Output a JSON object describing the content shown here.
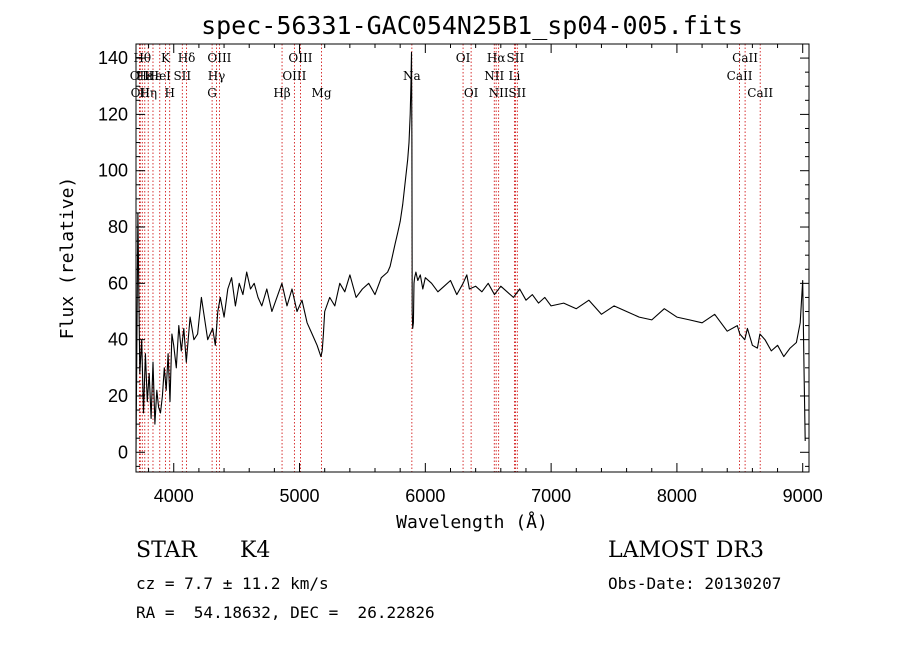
{
  "chart_data": {
    "type": "line",
    "title": "spec-56331-GAC054N25B1_sp04-005.fits",
    "xlabel": "Wavelength (Å)",
    "ylabel": "Flux (relative)",
    "xlim": [
      3700,
      9050
    ],
    "ylim": [
      -7,
      145
    ],
    "x_ticks": [
      4000,
      5000,
      6000,
      7000,
      8000,
      9000
    ],
    "y_ticks": [
      0,
      20,
      40,
      60,
      80,
      100,
      120,
      140
    ],
    "line_color": "#000000",
    "marker_color": "#cc0000",
    "series": [
      {
        "name": "spectrum",
        "x": [
          3700,
          3715,
          3730,
          3745,
          3760,
          3775,
          3790,
          3805,
          3820,
          3835,
          3850,
          3865,
          3880,
          3895,
          3910,
          3925,
          3940,
          3955,
          3970,
          3985,
          4000,
          4020,
          4040,
          4060,
          4080,
          4100,
          4130,
          4160,
          4190,
          4220,
          4250,
          4270,
          4290,
          4310,
          4330,
          4350,
          4370,
          4400,
          4430,
          4460,
          4490,
          4520,
          4550,
          4580,
          4610,
          4640,
          4670,
          4700,
          4740,
          4780,
          4820,
          4860,
          4900,
          4940,
          4980,
          5020,
          5060,
          5100,
          5140,
          5170,
          5180,
          5190,
          5200,
          5240,
          5280,
          5320,
          5360,
          5400,
          5450,
          5500,
          5550,
          5600,
          5650,
          5700,
          5720,
          5740,
          5760,
          5780,
          5800,
          5820,
          5840,
          5860,
          5870,
          5880,
          5885,
          5890,
          5893,
          5896,
          5900,
          5905,
          5910,
          5915,
          5925,
          5940,
          5960,
          5980,
          6000,
          6050,
          6100,
          6150,
          6200,
          6250,
          6300,
          6330,
          6350,
          6400,
          6450,
          6500,
          6550,
          6600,
          6650,
          6700,
          6750,
          6800,
          6850,
          6900,
          6950,
          7000,
          7100,
          7200,
          7300,
          7400,
          7500,
          7600,
          7700,
          7800,
          7900,
          8000,
          8100,
          8200,
          8300,
          8400,
          8480,
          8500,
          8540,
          8560,
          8600,
          8640,
          8660,
          8700,
          8750,
          8800,
          8850,
          8900,
          8950,
          8980,
          9000,
          9010,
          9020
        ],
        "values": [
          0,
          85,
          28,
          40,
          14,
          35,
          18,
          28,
          12,
          32,
          10,
          22,
          16,
          14,
          20,
          30,
          22,
          35,
          18,
          42,
          38,
          30,
          45,
          36,
          44,
          32,
          48,
          40,
          42,
          55,
          46,
          40,
          42,
          44,
          38,
          50,
          55,
          48,
          58,
          62,
          52,
          60,
          56,
          64,
          58,
          60,
          55,
          52,
          58,
          50,
          55,
          60,
          52,
          58,
          50,
          54,
          46,
          42,
          38,
          34,
          36,
          42,
          50,
          55,
          52,
          60,
          57,
          63,
          55,
          58,
          60,
          56,
          62,
          64,
          66,
          70,
          74,
          78,
          82,
          88,
          96,
          104,
          110,
          120,
          130,
          142,
          110,
          50,
          44,
          46,
          60,
          62,
          64,
          61,
          63,
          58,
          62,
          60,
          57,
          59,
          61,
          56,
          60,
          63,
          58,
          59,
          57,
          60,
          56,
          59,
          57,
          55,
          58,
          54,
          56,
          53,
          55,
          52,
          53,
          51,
          54,
          49,
          52,
          50,
          48,
          47,
          51,
          48,
          47,
          46,
          49,
          43,
          45,
          42,
          40,
          44,
          38,
          37,
          42,
          40,
          36,
          38,
          34,
          37,
          39,
          46,
          61,
          30,
          4
        ]
      }
    ],
    "lines": [
      {
        "wave": 3727,
        "label": "OII",
        "row": 1
      },
      {
        "wave": 3734,
        "label": "OII",
        "row": 2
      },
      {
        "wave": 3750,
        "label": "Hθ",
        "row": 0
      },
      {
        "wave": 3770,
        "label": "Hε",
        "row": 1
      },
      {
        "wave": 3797,
        "label": "Hη",
        "row": 2
      },
      {
        "wave": 3835,
        "label": "Hε",
        "row": 1
      },
      {
        "wave": 3889,
        "label": "HeI",
        "row": 1
      },
      {
        "wave": 3934,
        "label": "K",
        "row": 0
      },
      {
        "wave": 3968,
        "label": "H",
        "row": 2
      },
      {
        "wave": 4068,
        "label": "SII",
        "row": 1
      },
      {
        "wave": 4102,
        "label": "Hδ",
        "row": 0
      },
      {
        "wave": 4305,
        "label": "G",
        "row": 2
      },
      {
        "wave": 4340,
        "label": "Hγ",
        "row": 1
      },
      {
        "wave": 4363,
        "label": "OIII",
        "row": 0
      },
      {
        "wave": 4861,
        "label": "Hβ",
        "row": 2
      },
      {
        "wave": 4959,
        "label": "OIII",
        "row": 1
      },
      {
        "wave": 5007,
        "label": "OIII",
        "row": 0
      },
      {
        "wave": 5175,
        "label": "Mg",
        "row": 2
      },
      {
        "wave": 5893,
        "label": "Na",
        "row": 1
      },
      {
        "wave": 6300,
        "label": "OI",
        "row": 0
      },
      {
        "wave": 6364,
        "label": "OI",
        "row": 2
      },
      {
        "wave": 6548,
        "label": "NII",
        "row": 1
      },
      {
        "wave": 6563,
        "label": "Hα",
        "row": 0
      },
      {
        "wave": 6583,
        "label": "NII",
        "row": 2
      },
      {
        "wave": 6708,
        "label": "Li",
        "row": 1
      },
      {
        "wave": 6716,
        "label": "SII",
        "row": 0
      },
      {
        "wave": 6731,
        "label": "SII",
        "row": 2
      },
      {
        "wave": 8498,
        "label": "CaII",
        "row": 1
      },
      {
        "wave": 8542,
        "label": "CaII",
        "row": 0
      },
      {
        "wave": 8662,
        "label": "CaII",
        "row": 2
      }
    ]
  },
  "info": {
    "object_type": "STAR",
    "subclass": "K4",
    "survey": "LAMOST DR3",
    "redshift": "cz = 7.7 ± 11.2 km/s",
    "obs_date": "Obs-Date: 20130207",
    "coords": "RA =  54.18632, DEC =  26.22826"
  }
}
